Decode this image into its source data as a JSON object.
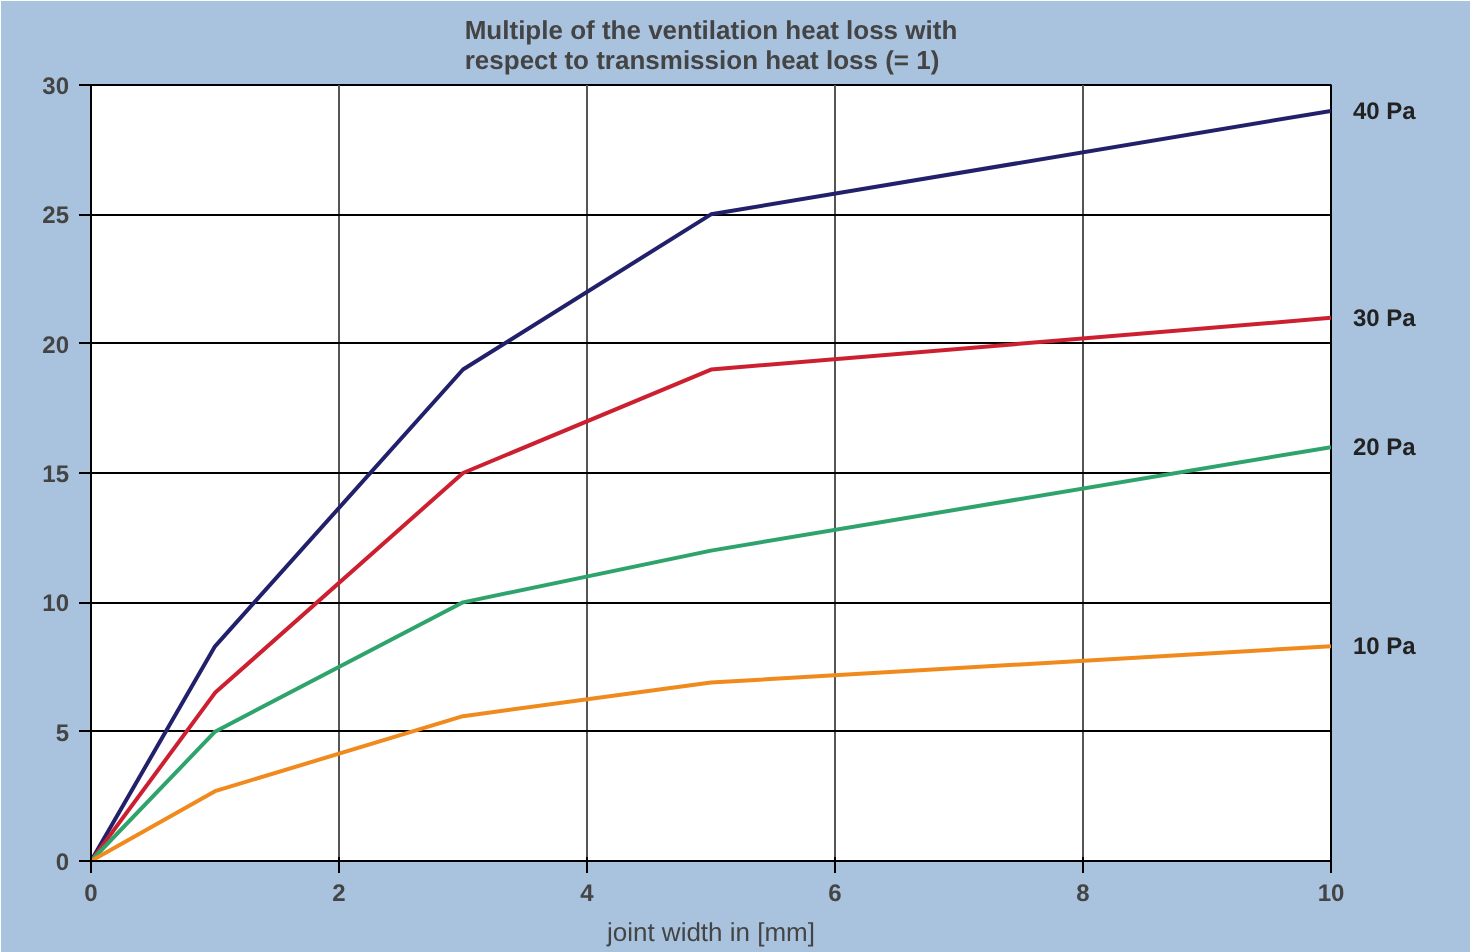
{
  "chart_data": {
    "type": "line",
    "title": "Multiple of the ventilation heat loss with\nrespect to transmission heat loss (= 1)",
    "xlabel": "joint width in [mm]",
    "x": [
      0,
      1,
      3,
      5,
      10
    ],
    "series": [
      {
        "name": "40 Pa",
        "color": "#22206b",
        "values": [
          0,
          8.3,
          19,
          25,
          29
        ]
      },
      {
        "name": "30 Pa",
        "color": "#cc2030",
        "values": [
          0,
          6.5,
          15,
          19,
          21
        ]
      },
      {
        "name": "20 Pa",
        "color": "#2ea36b",
        "values": [
          0,
          5,
          10,
          12,
          16
        ]
      },
      {
        "name": "10 Pa",
        "color": "#f08a1c",
        "values": [
          0,
          2.7,
          5.6,
          6.9,
          8.3
        ]
      }
    ],
    "xlim": [
      0,
      10
    ],
    "ylim": [
      0,
      30
    ],
    "xticks": [
      0,
      2,
      4,
      6,
      8,
      10
    ],
    "yticks": [
      0,
      5,
      10,
      15,
      20,
      25,
      30
    ],
    "grid": true,
    "legend": false,
    "marker": "none",
    "line_style": "solid"
  }
}
